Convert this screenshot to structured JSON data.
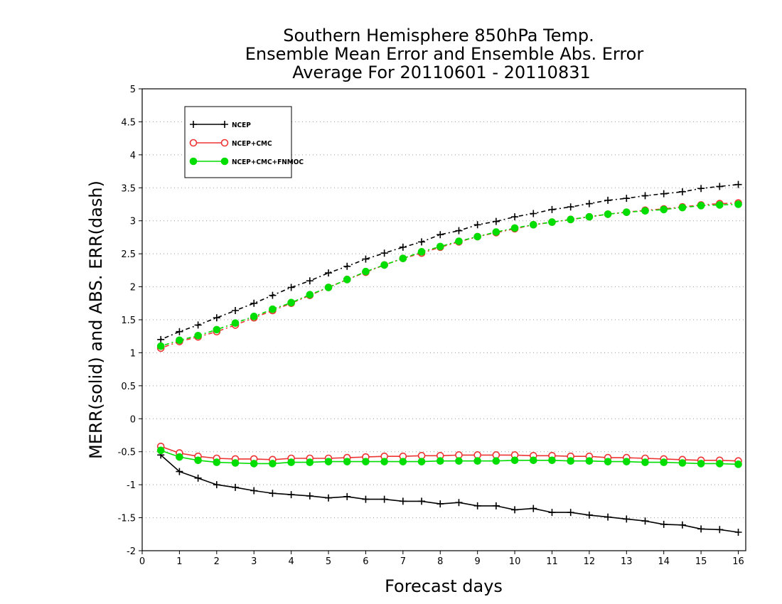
{
  "chart_data": {
    "type": "line",
    "title": [
      "Southern Hemisphere 850hPa Temp.",
      "Ensemble Mean Error and Ensemble Abs. Error",
      "Average For 20110601 - 20110831"
    ],
    "xlabel": "Forecast days",
    "ylabel": "MERR(solid) and ABS. ERR(dash)",
    "xlim": [
      0,
      16.2
    ],
    "ylim": [
      -2,
      5
    ],
    "xticks": [
      "0",
      "1",
      "2",
      "3",
      "4",
      "5",
      "6",
      "7",
      "8",
      "9",
      "10",
      "11",
      "12",
      "13",
      "14",
      "15",
      "16"
    ],
    "yticks": [
      "-2",
      "-1.5",
      "-1",
      "-0.5",
      "0",
      "0.5",
      "1",
      "1.5",
      "2",
      "2.5",
      "3",
      "3.5",
      "4",
      "4.5",
      "5"
    ],
    "grid": "horizontal dotted",
    "legend_position": "top-left",
    "x": [
      0.5,
      1,
      1.5,
      2,
      2.5,
      3,
      3.5,
      4,
      4.5,
      5,
      5.5,
      6,
      6.5,
      7,
      7.5,
      8,
      8.5,
      9,
      9.5,
      10,
      10.5,
      11,
      11.5,
      12,
      12.5,
      13,
      13.5,
      14,
      14.5,
      15,
      15.5,
      16
    ],
    "series": [
      {
        "name": "NCEP",
        "color": "#000000",
        "marker": "plus",
        "mean_error": [
          -0.55,
          -0.8,
          -0.9,
          -1.0,
          -1.04,
          -1.09,
          -1.13,
          -1.15,
          -1.17,
          -1.2,
          -1.18,
          -1.22,
          -1.22,
          -1.25,
          -1.25,
          -1.29,
          -1.27,
          -1.32,
          -1.32,
          -1.38,
          -1.36,
          -1.42,
          -1.42,
          -1.46,
          -1.49,
          -1.52,
          -1.55,
          -1.6,
          -1.61,
          -1.67,
          -1.68,
          -1.72
        ],
        "abs_error": [
          1.2,
          1.32,
          1.42,
          1.53,
          1.64,
          1.75,
          1.87,
          1.99,
          2.09,
          2.21,
          2.31,
          2.42,
          2.51,
          2.6,
          2.68,
          2.79,
          2.85,
          2.94,
          2.99,
          3.06,
          3.11,
          3.17,
          3.21,
          3.26,
          3.31,
          3.34,
          3.38,
          3.41,
          3.44,
          3.49,
          3.52,
          3.55
        ]
      },
      {
        "name": "NCEP+CMC",
        "color": "#ee3333",
        "marker": "open-circle",
        "mean_error": [
          -0.42,
          -0.52,
          -0.57,
          -0.6,
          -0.61,
          -0.61,
          -0.62,
          -0.6,
          -0.6,
          -0.6,
          -0.59,
          -0.58,
          -0.57,
          -0.57,
          -0.56,
          -0.56,
          -0.55,
          -0.55,
          -0.55,
          -0.55,
          -0.56,
          -0.56,
          -0.57,
          -0.57,
          -0.59,
          -0.59,
          -0.6,
          -0.61,
          -0.62,
          -0.63,
          -0.63,
          -0.64
        ],
        "abs_error": [
          1.07,
          1.17,
          1.24,
          1.32,
          1.42,
          1.53,
          1.64,
          1.75,
          1.87,
          1.99,
          2.11,
          2.22,
          2.33,
          2.43,
          2.51,
          2.6,
          2.68,
          2.76,
          2.82,
          2.88,
          2.94,
          2.98,
          3.02,
          3.06,
          3.1,
          3.13,
          3.16,
          3.18,
          3.21,
          3.24,
          3.26,
          3.27
        ]
      },
      {
        "name": "NCEP+CMC+FNMOC",
        "color": "#00dd00",
        "marker": "filled-circle",
        "mean_error": [
          -0.48,
          -0.58,
          -0.63,
          -0.66,
          -0.67,
          -0.68,
          -0.68,
          -0.66,
          -0.66,
          -0.65,
          -0.65,
          -0.65,
          -0.65,
          -0.65,
          -0.65,
          -0.64,
          -0.64,
          -0.64,
          -0.64,
          -0.63,
          -0.63,
          -0.63,
          -0.64,
          -0.64,
          -0.65,
          -0.65,
          -0.66,
          -0.66,
          -0.67,
          -0.68,
          -0.68,
          -0.69
        ],
        "abs_error": [
          1.1,
          1.19,
          1.26,
          1.35,
          1.45,
          1.55,
          1.66,
          1.76,
          1.88,
          1.99,
          2.11,
          2.23,
          2.33,
          2.43,
          2.53,
          2.61,
          2.69,
          2.76,
          2.83,
          2.89,
          2.94,
          2.98,
          3.02,
          3.06,
          3.1,
          3.13,
          3.15,
          3.17,
          3.2,
          3.23,
          3.24,
          3.25
        ]
      }
    ]
  }
}
